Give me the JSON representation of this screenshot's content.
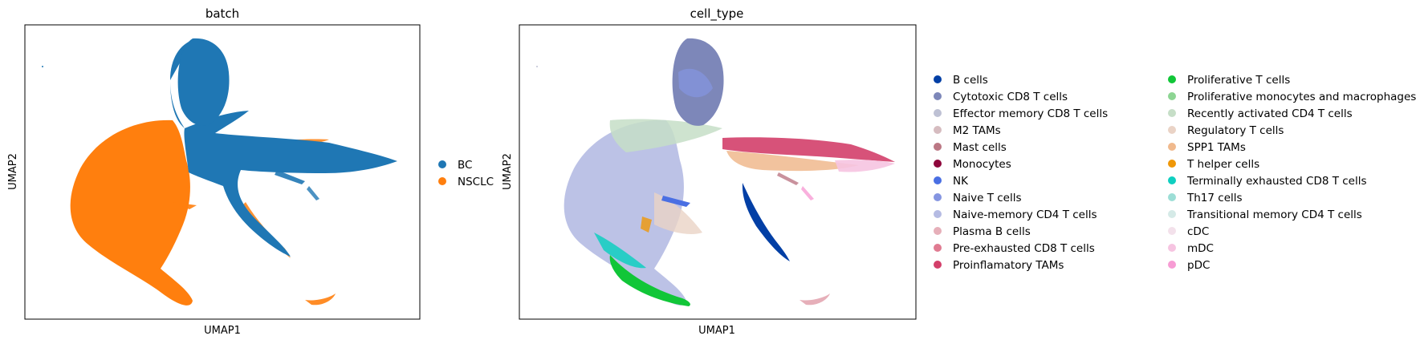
{
  "chart_data": [
    {
      "type": "scatter",
      "title": "batch",
      "xlabel": "UMAP1",
      "ylabel": "UMAP2",
      "xticks": [],
      "yticks": [],
      "legend_placement": "right",
      "grid": false,
      "series": [
        {
          "name": "BC",
          "color": "#1f77b4"
        },
        {
          "name": "NSCLC",
          "color": "#ff7f0e"
        }
      ]
    },
    {
      "type": "scatter",
      "title": "cell_type",
      "xlabel": "UMAP1",
      "ylabel": "UMAP2",
      "xticks": [],
      "yticks": [],
      "legend_placement": "right",
      "grid": false,
      "series": [
        {
          "name": "B cells",
          "color": "#023fa5"
        },
        {
          "name": "Cytotoxic CD8 T cells",
          "color": "#7d87b9"
        },
        {
          "name": "Effector memory CD8 T cells",
          "color": "#bec1d4"
        },
        {
          "name": "M2 TAMs",
          "color": "#d6bcc0"
        },
        {
          "name": "Mast cells",
          "color": "#bb7784"
        },
        {
          "name": "Monocytes",
          "color": "#8e063b"
        },
        {
          "name": "NK",
          "color": "#4a6fe3"
        },
        {
          "name": "Naive T cells",
          "color": "#8595e1"
        },
        {
          "name": "Naive-memory CD4 T cells",
          "color": "#b5bbe3"
        },
        {
          "name": "Plasma B cells",
          "color": "#e6afb9"
        },
        {
          "name": "Pre-exhausted CD8 T cells",
          "color": "#e07b91"
        },
        {
          "name": "Proinflamatory TAMs",
          "color": "#d33f6a"
        },
        {
          "name": "Proliferative T cells",
          "color": "#11c638"
        },
        {
          "name": "Proliferative monocytes and macrophages",
          "color": "#8dd593"
        },
        {
          "name": "Recently activated CD4 T cells",
          "color": "#c6dec7"
        },
        {
          "name": "Regulatory T cells",
          "color": "#ead3c6"
        },
        {
          "name": "SPP1 TAMs",
          "color": "#f0b98d"
        },
        {
          "name": "T helper cells",
          "color": "#ef9708"
        },
        {
          "name": "Terminally exhausted CD8 T cells",
          "color": "#0fcfc0"
        },
        {
          "name": "Th17 cells",
          "color": "#9cded6"
        },
        {
          "name": "Transitional memory CD4 T cells",
          "color": "#d5eae7"
        },
        {
          "name": "cDC",
          "color": "#f3e1eb"
        },
        {
          "name": "mDC",
          "color": "#f6c4e1"
        },
        {
          "name": "pDC",
          "color": "#f79cd4"
        }
      ]
    }
  ]
}
